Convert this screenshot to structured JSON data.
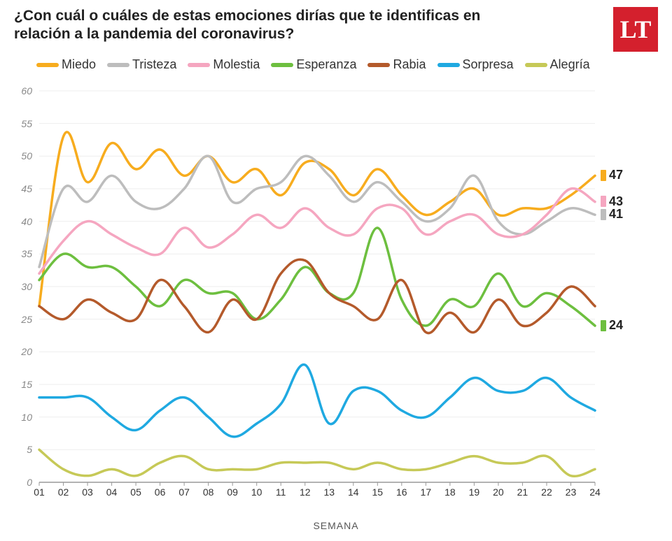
{
  "title": "¿Con cuál o cuáles de estas emociones dirías que te identificas en relación a la pandemia del coronavirus?",
  "logo_text": "LT",
  "xaxis_title": "SEMANA",
  "chart": {
    "type": "line",
    "background_color": "#ffffff",
    "grid_color": "#eeeeee",
    "axis_color": "#888888",
    "ylim": [
      0,
      60
    ],
    "yticks": [
      0,
      5,
      10,
      15,
      20,
      25,
      30,
      35,
      40,
      45,
      50,
      55,
      60
    ],
    "xticks": [
      "01",
      "02",
      "03",
      "04",
      "05",
      "06",
      "07",
      "08",
      "09",
      "10",
      "11",
      "12",
      "13",
      "14",
      "15",
      "16",
      "17",
      "18",
      "19",
      "20",
      "21",
      "22",
      "23",
      "24"
    ],
    "line_width": 3.5,
    "label_fontsize": 14,
    "title_fontsize": 21,
    "legend_fontsize": 18,
    "smoothing": "cubic",
    "series": [
      {
        "name": "Miedo",
        "color": "#f7ac1e",
        "endlabel": 47,
        "values": [
          27,
          53,
          46,
          52,
          48,
          51,
          47,
          50,
          46,
          48,
          44,
          49,
          48,
          44,
          48,
          44,
          41,
          43,
          45,
          41,
          42,
          42,
          44,
          47
        ]
      },
      {
        "name": "Tristeza",
        "color": "#bdbdbd",
        "endlabel": 41,
        "values": [
          33,
          45,
          43,
          47,
          43,
          42,
          45,
          50,
          43,
          45,
          46,
          50,
          47,
          43,
          46,
          43,
          40,
          42,
          47,
          40,
          38,
          40,
          42,
          41
        ]
      },
      {
        "name": "Molestia",
        "color": "#f5a6c0",
        "endlabel": 43,
        "values": [
          32,
          37,
          40,
          38,
          36,
          35,
          39,
          36,
          38,
          41,
          39,
          42,
          39,
          38,
          42,
          42,
          38,
          40,
          41,
          38,
          38,
          41,
          45,
          43
        ]
      },
      {
        "name": "Esperanza",
        "color": "#6dbf3f",
        "endlabel": 24,
        "values": [
          31,
          35,
          33,
          33,
          30,
          27,
          31,
          29,
          29,
          25,
          28,
          33,
          29,
          29,
          39,
          28,
          24,
          28,
          27,
          32,
          27,
          29,
          27,
          24
        ]
      },
      {
        "name": "Rabia",
        "color": "#b45a2b",
        "endlabel": null,
        "values": [
          27,
          25,
          28,
          26,
          25,
          31,
          27,
          23,
          28,
          25,
          32,
          34,
          29,
          27,
          25,
          31,
          23,
          26,
          23,
          28,
          24,
          26,
          30,
          27
        ]
      },
      {
        "name": "Sorpresa",
        "color": "#1fa9e1",
        "endlabel": null,
        "values": [
          13,
          13,
          13,
          10,
          8,
          11,
          13,
          10,
          7,
          9,
          12,
          18,
          9,
          14,
          14,
          11,
          10,
          13,
          16,
          14,
          14,
          16,
          13,
          11
        ]
      },
      {
        "name": "Alegría",
        "color": "#c6c957",
        "endlabel": null,
        "values": [
          5,
          2,
          1,
          2,
          1,
          3,
          4,
          2,
          2,
          2,
          3,
          3,
          3,
          2,
          3,
          2,
          2,
          3,
          4,
          3,
          3,
          4,
          1,
          2
        ]
      }
    ]
  },
  "endlabel_positions": {
    "Miedo": 47,
    "Molestia": 43,
    "Tristeza": 41,
    "Esperanza": 24
  }
}
